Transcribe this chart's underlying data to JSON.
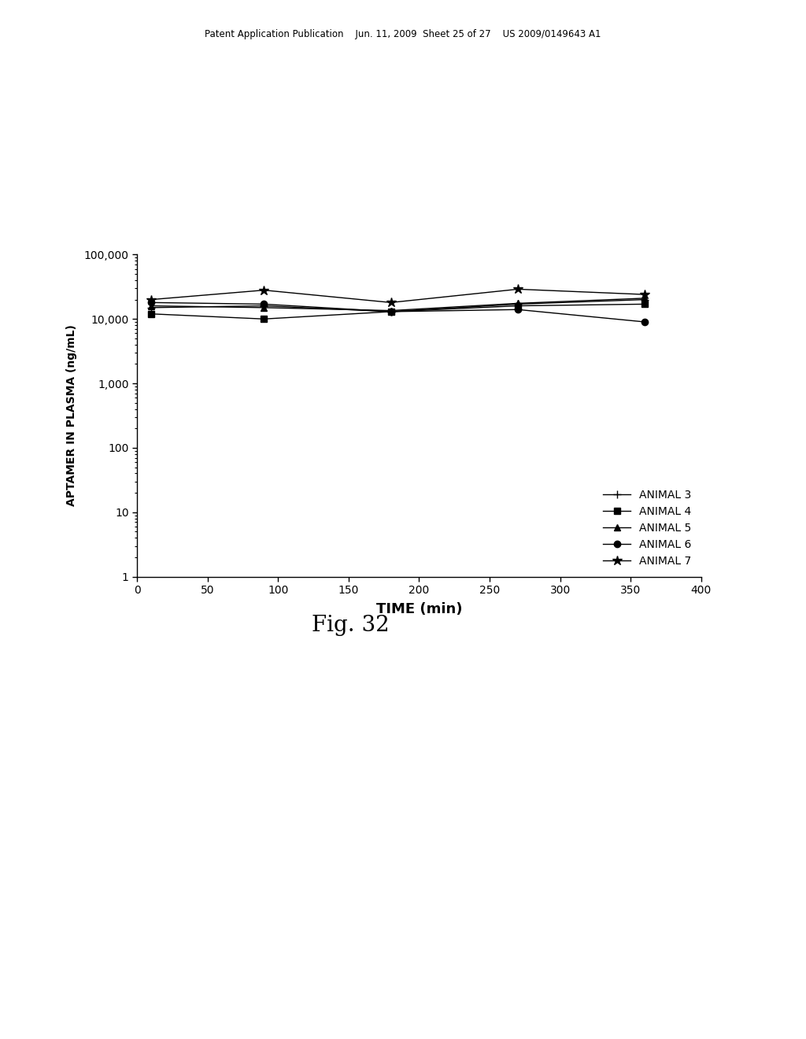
{
  "title": "",
  "xlabel": "TIME (min)",
  "ylabel": "APTAMER IN PLASMA (ng/mL)",
  "fig_title": "Fig. 32",
  "header_text": "Patent Application Publication    Jun. 11, 2009  Sheet 25 of 27    US 2009/0149643 A1",
  "series": [
    {
      "label": "ANIMAL 3",
      "marker": "+",
      "x": [
        10,
        90,
        180,
        270,
        360
      ],
      "y": [
        15000,
        16000,
        13000,
        17000,
        20000
      ]
    },
    {
      "label": "ANIMAL 4",
      "marker": "s",
      "x": [
        10,
        90,
        180,
        270,
        360
      ],
      "y": [
        12000,
        10000,
        13000,
        16000,
        17000
      ]
    },
    {
      "label": "ANIMAL 5",
      "marker": "^",
      "x": [
        10,
        90,
        180,
        270,
        360
      ],
      "y": [
        16000,
        15000,
        13500,
        17500,
        21000
      ]
    },
    {
      "label": "ANIMAL 6",
      "marker": "o",
      "x": [
        10,
        90,
        180,
        270,
        360
      ],
      "y": [
        18000,
        17000,
        13000,
        14000,
        9000
      ]
    },
    {
      "label": "ANIMAL 7",
      "marker": "*",
      "x": [
        10,
        90,
        180,
        270,
        360
      ],
      "y": [
        20000,
        28000,
        18000,
        29000,
        24000
      ]
    }
  ],
  "ylim_log": [
    1,
    100000
  ],
  "xlim": [
    0,
    400
  ],
  "xticks": [
    0,
    50,
    100,
    150,
    200,
    250,
    300,
    350,
    400
  ],
  "yticks": [
    1,
    10,
    100,
    1000,
    10000,
    100000
  ],
  "ytick_labels": [
    "1",
    "10",
    "100",
    "1,000",
    "10,000",
    "100,000"
  ],
  "line_color": "#000000",
  "background_color": "#ffffff",
  "legend_loc": "lower right",
  "xlabel_fontsize": 13,
  "ylabel_fontsize": 10,
  "tick_fontsize": 10,
  "legend_fontsize": 10,
  "header_fontsize": 8.5
}
